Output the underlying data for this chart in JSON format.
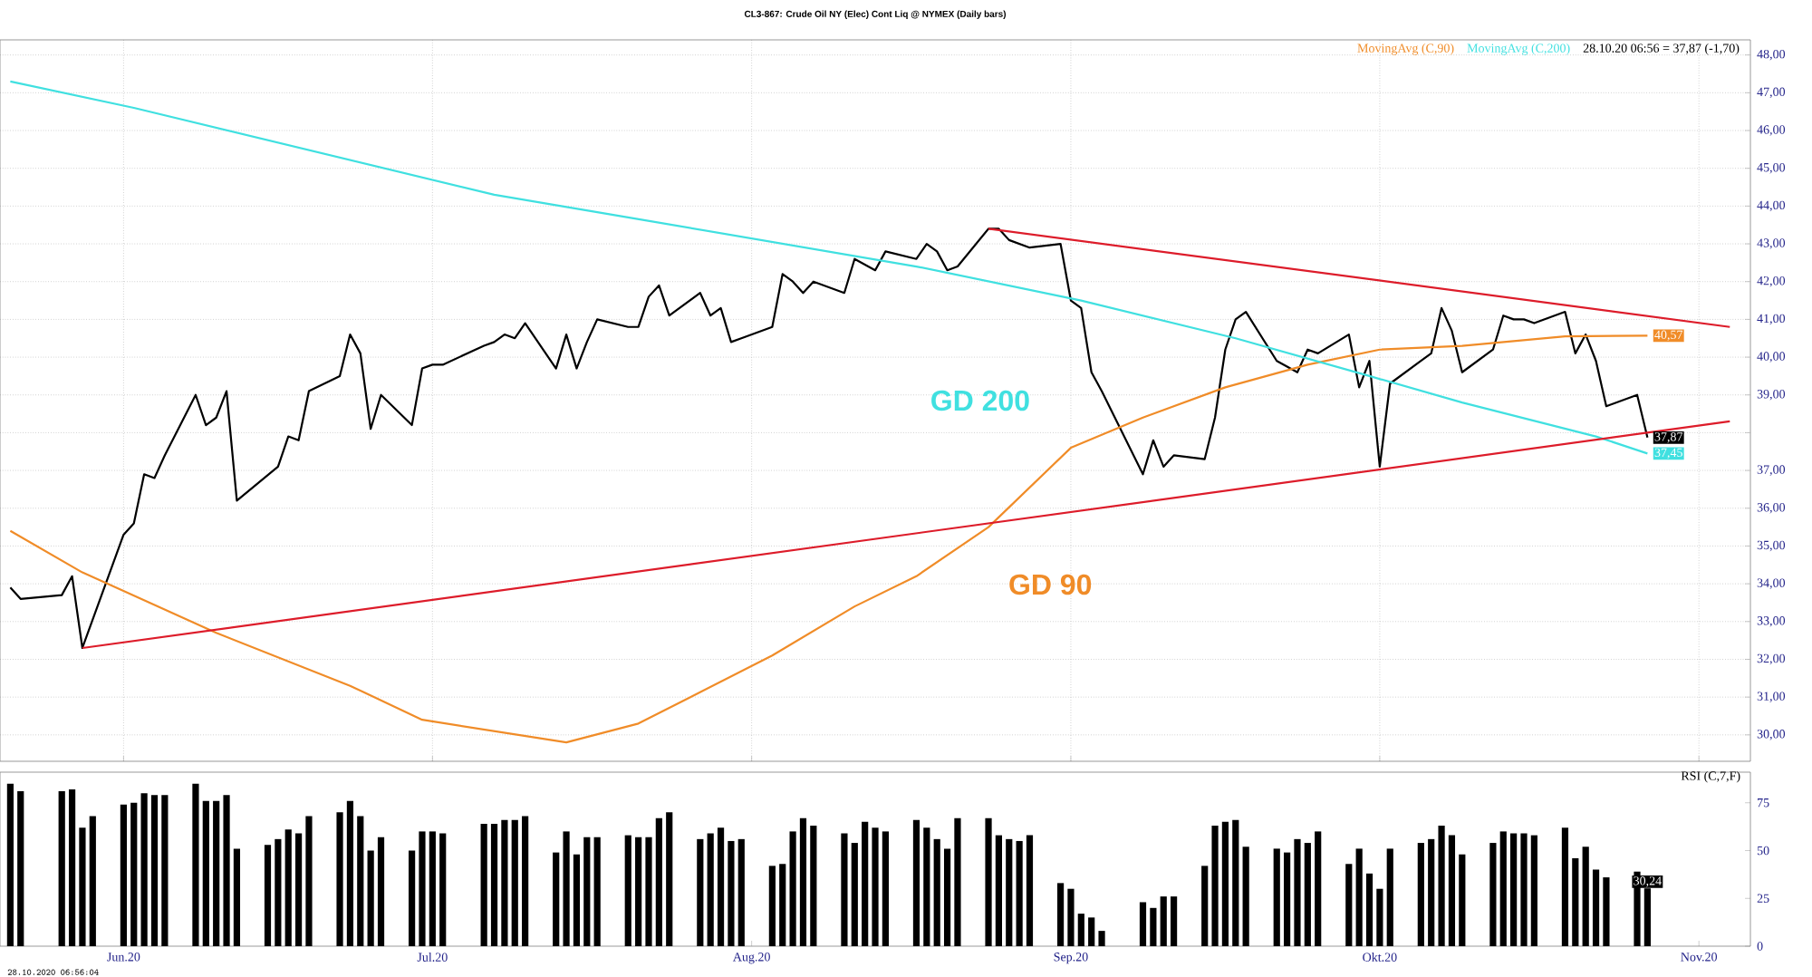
{
  "chart_data": [
    {
      "type": "line",
      "title": "CL3-867: Crude Oil NY (Elec) Cont Liq @ NYMEX  (Daily bars)",
      "xlim": [
        "2020-05-20",
        "2020-11-06"
      ],
      "ylim": [
        29.3,
        48.4
      ],
      "xticks": [
        {
          "value": "2020-06",
          "label": null
        },
        {
          "value": "2020-07",
          "label": null
        },
        {
          "value": "2020-08",
          "label": null
        },
        {
          "value": "2020-09",
          "label": null
        },
        {
          "value": "2020-10",
          "label": null
        },
        {
          "value": "2020-11",
          "label": null
        }
      ],
      "yticks": [
        {
          "value": 30,
          "label": "30,00"
        },
        {
          "value": 31,
          "label": "31,00"
        },
        {
          "value": 32,
          "label": "32,00"
        },
        {
          "value": 33,
          "label": "33,00"
        },
        {
          "value": 34,
          "label": "34,00"
        },
        {
          "value": 35,
          "label": "35,00"
        },
        {
          "value": 36,
          "label": "36,00"
        },
        {
          "value": 37,
          "label": "37,00"
        },
        {
          "value": 38,
          "label": null
        },
        {
          "value": 39,
          "label": "39,00"
        },
        {
          "value": 40,
          "label": "40,00"
        },
        {
          "value": 41,
          "label": "41,00"
        },
        {
          "value": 42,
          "label": "42,00"
        },
        {
          "value": 43,
          "label": "43,00"
        },
        {
          "value": 44,
          "label": "44,00"
        },
        {
          "value": 45,
          "label": "45,00"
        },
        {
          "value": 46,
          "label": "46,00"
        },
        {
          "value": 47,
          "label": "47,00"
        },
        {
          "value": 48,
          "label": "48,00"
        }
      ],
      "tick_labels": "y",
      "grid": true,
      "legend": "top right",
      "series": [
        {
          "color": "#000000",
          "x": [
            "2020-05-21",
            "2020-05-22",
            "2020-05-26",
            "2020-05-27",
            "2020-05-28",
            "2020-06-01",
            "2020-06-02",
            "2020-06-03",
            "2020-06-04",
            "2020-06-05",
            "2020-06-08",
            "2020-06-09",
            "2020-06-10",
            "2020-06-11",
            "2020-06-12",
            "2020-06-16",
            "2020-06-17",
            "2020-06-18",
            "2020-06-19",
            "2020-06-22",
            "2020-06-23",
            "2020-06-24",
            "2020-06-25",
            "2020-06-26",
            "2020-06-29",
            "2020-06-30",
            "2020-07-01",
            "2020-07-02",
            "2020-07-06",
            "2020-07-07",
            "2020-07-08",
            "2020-07-09",
            "2020-07-10",
            "2020-07-13",
            "2020-07-14",
            "2020-07-15",
            "2020-07-16",
            "2020-07-17",
            "2020-07-20",
            "2020-07-21",
            "2020-07-22",
            "2020-07-23",
            "2020-07-24",
            "2020-07-27",
            "2020-07-28",
            "2020-07-29",
            "2020-07-30",
            "2020-07-31",
            "2020-08-03",
            "2020-08-04",
            "2020-08-05",
            "2020-08-06",
            "2020-08-07",
            "2020-08-10",
            "2020-08-11",
            "2020-08-13",
            "2020-08-14",
            "2020-08-17",
            "2020-08-18",
            "2020-08-19",
            "2020-08-20",
            "2020-08-21",
            "2020-08-24",
            "2020-08-25",
            "2020-08-26",
            "2020-08-28",
            "2020-08-31",
            "2020-09-01",
            "2020-09-02",
            "2020-09-03",
            "2020-09-04",
            "2020-09-08",
            "2020-09-09",
            "2020-09-10",
            "2020-09-11",
            "2020-09-14",
            "2020-09-15",
            "2020-09-16",
            "2020-09-17",
            "2020-09-18",
            "2020-09-21",
            "2020-09-23",
            "2020-09-24",
            "2020-09-25",
            "2020-09-28",
            "2020-09-29",
            "2020-09-30",
            "2020-10-01",
            "2020-10-02",
            "2020-10-05",
            "2020-10-06",
            "2020-10-07",
            "2020-10-08",
            "2020-10-09",
            "2020-10-12",
            "2020-10-13",
            "2020-10-14",
            "2020-10-15",
            "2020-10-16",
            "2020-10-19",
            "2020-10-20",
            "2020-10-21",
            "2020-10-22",
            "2020-10-23",
            "2020-10-26",
            "2020-10-27"
          ],
          "values": [
            33.9,
            33.6,
            33.7,
            34.2,
            32.3,
            35.3,
            35.6,
            36.9,
            36.8,
            37.4,
            39.0,
            38.2,
            38.4,
            39.1,
            36.2,
            37.1,
            37.9,
            37.8,
            39.1,
            39.5,
            40.6,
            40.1,
            38.1,
            39.0,
            38.2,
            39.7,
            39.8,
            39.8,
            40.3,
            40.4,
            40.6,
            40.5,
            40.9,
            39.7,
            40.6,
            39.7,
            40.4,
            41.0,
            40.8,
            40.8,
            41.6,
            41.9,
            41.1,
            41.7,
            41.1,
            41.3,
            40.4,
            40.5,
            40.8,
            42.2,
            42.0,
            41.7,
            42.0,
            41.7,
            42.6,
            42.3,
            42.8,
            42.6,
            43.0,
            42.8,
            42.3,
            42.4,
            43.4,
            43.4,
            43.1,
            42.9,
            43.0,
            41.5,
            41.3,
            39.6,
            39.1,
            36.9,
            37.8,
            37.1,
            37.4,
            37.3,
            38.4,
            40.2,
            41.0,
            41.2,
            39.9,
            39.6,
            40.2,
            40.1,
            40.6,
            39.2,
            39.9,
            37.1,
            39.3,
            39.9,
            40.1,
            41.3,
            40.7,
            39.6,
            40.2,
            41.1,
            41.0,
            41.0,
            40.9,
            41.2,
            40.1,
            40.6,
            39.9,
            38.7,
            39.0,
            37.87
          ],
          "value_labels": [
            null,
            null,
            null,
            null,
            null,
            null,
            null,
            null,
            null,
            null,
            null,
            null,
            null,
            null,
            null,
            null,
            null,
            null,
            null,
            null,
            null,
            null,
            null,
            null,
            null,
            null,
            null,
            null,
            null,
            null,
            null,
            null,
            null,
            null,
            null,
            null,
            null,
            null,
            null,
            null,
            null,
            null,
            null,
            null,
            null,
            null,
            null,
            null,
            null,
            null,
            null,
            null,
            null,
            null,
            null,
            null,
            null,
            null,
            null,
            null,
            null,
            null,
            null,
            null,
            null,
            null,
            null,
            null,
            null,
            null,
            null,
            null,
            null,
            null,
            null,
            null,
            null,
            null,
            null,
            null,
            null,
            null,
            null,
            null,
            null,
            null,
            null,
            null,
            null,
            null,
            null,
            null,
            null,
            null,
            null,
            null,
            null,
            null,
            null,
            null,
            null,
            null,
            null,
            null,
            null,
            "37,87"
          ]
        },
        {
          "name": "MovingAvg (C,90)",
          "color": "#f08c28",
          "x": [
            "2020-05-21",
            "2020-05-28",
            "2020-06-10",
            "2020-06-23",
            "2020-06-30",
            "2020-07-14",
            "2020-07-21",
            "2020-08-03",
            "2020-08-11",
            "2020-08-17",
            "2020-08-24",
            "2020-09-01",
            "2020-09-08",
            "2020-09-16",
            "2020-09-24",
            "2020-10-01",
            "2020-10-09",
            "2020-10-19",
            "2020-10-27"
          ],
          "values": [
            35.4,
            34.3,
            32.7,
            31.3,
            30.4,
            29.8,
            30.3,
            32.1,
            33.4,
            34.2,
            35.5,
            37.6,
            38.4,
            39.2,
            39.8,
            40.2,
            40.3,
            40.55,
            40.57
          ],
          "value_labels": [
            null,
            null,
            null,
            null,
            null,
            null,
            null,
            null,
            null,
            null,
            null,
            null,
            null,
            null,
            null,
            null,
            null,
            null,
            "40,57"
          ]
        },
        {
          "name": "MovingAvg (C,200)",
          "color": "#40e0e0",
          "x": [
            "2020-05-21",
            "2020-06-02",
            "2020-07-07",
            "2020-07-20",
            "2020-08-17",
            "2020-09-02",
            "2020-09-17",
            "2020-09-30",
            "2020-10-09",
            "2020-10-22",
            "2020-10-27"
          ],
          "values": [
            47.3,
            46.6,
            44.3,
            43.7,
            42.4,
            41.5,
            40.5,
            39.5,
            38.8,
            37.9,
            37.45
          ],
          "value_labels": [
            null,
            null,
            null,
            null,
            null,
            null,
            null,
            null,
            null,
            null,
            "37,45"
          ]
        },
        {
          "color": "#dd1c2a",
          "x": [
            "2020-08-24",
            "2020-11-04"
          ],
          "values": [
            43.4,
            40.8
          ]
        },
        {
          "color": "#dd1c2a",
          "x": [
            "2020-05-28",
            "2020-11-04"
          ],
          "values": [
            32.3,
            38.3
          ]
        }
      ],
      "annotations": [
        "28.10.20 06:56 = 37,87 (-1,70)",
        "GD 200",
        "GD 90"
      ]
    },
    {
      "type": "bar",
      "title": "RSI (C,7,F)",
      "xlim": [
        "2020-05-20",
        "2020-11-06"
      ],
      "ylim": [
        0,
        91
      ],
      "xticks": [
        {
          "value": "2020-06",
          "label": "Jun.20"
        },
        {
          "value": "2020-07",
          "label": "Jul.20"
        },
        {
          "value": "2020-08",
          "label": "Aug.20"
        },
        {
          "value": "2020-09",
          "label": "Sep.20"
        },
        {
          "value": "2020-10",
          "label": "Okt.20"
        },
        {
          "value": "2020-11",
          "label": "Nov.20"
        }
      ],
      "yticks": [
        0,
        25,
        50,
        75
      ],
      "color": "#000000",
      "x": [
        "2020-05-21",
        "2020-05-22",
        "2020-05-26",
        "2020-05-27",
        "2020-05-28",
        "2020-05-29",
        "2020-06-01",
        "2020-06-02",
        "2020-06-03",
        "2020-06-04",
        "2020-06-05",
        "2020-06-08",
        "2020-06-09",
        "2020-06-10",
        "2020-06-11",
        "2020-06-12",
        "2020-06-15",
        "2020-06-16",
        "2020-06-17",
        "2020-06-18",
        "2020-06-19",
        "2020-06-22",
        "2020-06-23",
        "2020-06-24",
        "2020-06-25",
        "2020-06-26",
        "2020-06-29",
        "2020-06-30",
        "2020-07-01",
        "2020-07-02",
        "2020-07-06",
        "2020-07-07",
        "2020-07-08",
        "2020-07-09",
        "2020-07-10",
        "2020-07-13",
        "2020-07-14",
        "2020-07-15",
        "2020-07-16",
        "2020-07-17",
        "2020-07-20",
        "2020-07-21",
        "2020-07-22",
        "2020-07-23",
        "2020-07-24",
        "2020-07-27",
        "2020-07-28",
        "2020-07-29",
        "2020-07-30",
        "2020-07-31",
        "2020-08-03",
        "2020-08-04",
        "2020-08-05",
        "2020-08-06",
        "2020-08-07",
        "2020-08-10",
        "2020-08-11",
        "2020-08-12",
        "2020-08-13",
        "2020-08-14",
        "2020-08-17",
        "2020-08-18",
        "2020-08-19",
        "2020-08-20",
        "2020-08-21",
        "2020-08-24",
        "2020-08-25",
        "2020-08-26",
        "2020-08-27",
        "2020-08-28",
        "2020-08-31",
        "2020-09-01",
        "2020-09-02",
        "2020-09-03",
        "2020-09-04",
        "2020-09-08",
        "2020-09-09",
        "2020-09-10",
        "2020-09-11",
        "2020-09-14",
        "2020-09-15",
        "2020-09-16",
        "2020-09-17",
        "2020-09-18",
        "2020-09-21",
        "2020-09-22",
        "2020-09-23",
        "2020-09-24",
        "2020-09-25",
        "2020-09-28",
        "2020-09-29",
        "2020-09-30",
        "2020-10-01",
        "2020-10-02",
        "2020-10-05",
        "2020-10-06",
        "2020-10-07",
        "2020-10-08",
        "2020-10-09",
        "2020-10-12",
        "2020-10-13",
        "2020-10-14",
        "2020-10-15",
        "2020-10-16",
        "2020-10-19",
        "2020-10-20",
        "2020-10-21",
        "2020-10-22",
        "2020-10-23",
        "2020-10-26",
        "2020-10-27"
      ],
      "values": [
        85,
        81,
        81,
        82,
        62,
        68,
        74,
        75,
        80,
        79,
        79,
        85,
        76,
        76,
        79,
        51,
        53,
        56,
        61,
        59,
        68,
        70,
        76,
        68,
        50,
        57,
        50,
        60,
        60,
        59,
        64,
        64,
        66,
        66,
        68,
        49,
        60,
        48,
        57,
        57,
        58,
        57,
        57,
        67,
        70,
        56,
        59,
        62,
        55,
        56,
        42,
        43,
        60,
        67,
        63,
        59,
        54,
        65,
        62,
        60,
        66,
        62,
        56,
        51,
        67,
        67,
        58,
        56,
        55,
        58,
        33,
        30,
        17,
        15,
        8,
        23,
        20,
        26,
        26,
        42,
        63,
        65,
        66,
        52,
        51,
        49,
        56,
        54,
        60,
        43,
        51,
        38,
        30,
        51,
        54,
        56,
        63,
        58,
        48,
        54,
        60,
        59,
        59,
        58,
        62,
        46,
        52,
        40,
        36,
        39,
        30.24
      ],
      "value_labels": [
        null,
        null,
        null,
        null,
        null,
        null,
        null,
        null,
        null,
        null,
        null,
        null,
        null,
        null,
        null,
        null,
        null,
        null,
        null,
        null,
        null,
        null,
        null,
        null,
        null,
        null,
        null,
        null,
        null,
        null,
        null,
        null,
        null,
        null,
        null,
        null,
        null,
        null,
        null,
        null,
        null,
        null,
        null,
        null,
        null,
        null,
        null,
        null,
        null,
        null,
        null,
        null,
        null,
        null,
        null,
        null,
        null,
        null,
        null,
        null,
        null,
        null,
        null,
        null,
        null,
        null,
        null,
        null,
        null,
        null,
        null,
        null,
        null,
        null,
        null,
        null,
        null,
        null,
        null,
        null,
        null,
        null,
        null,
        null,
        null,
        null,
        null,
        null,
        null,
        null,
        null,
        null,
        null,
        null,
        null,
        null,
        null,
        null,
        null,
        null,
        null,
        null,
        null,
        null,
        null,
        null,
        null,
        null,
        null,
        null,
        "30,24"
      ],
      "annotations": [
        "28.10.2020 06:56:04"
      ]
    }
  ]
}
